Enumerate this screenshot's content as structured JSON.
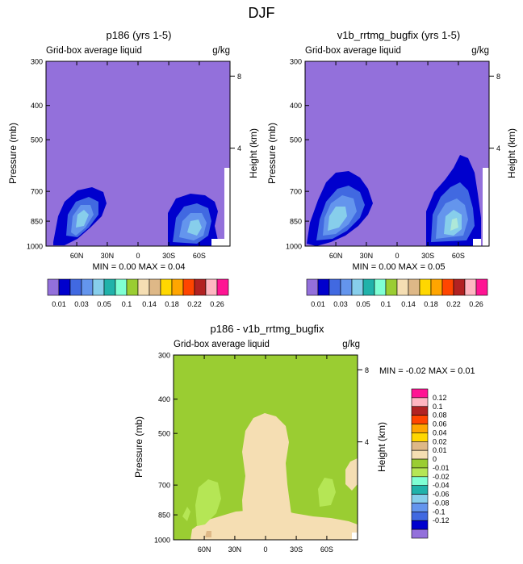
{
  "figure_title": "DJF",
  "chart_data": [
    {
      "type": "contour",
      "title": "p186 (yrs 1-5)",
      "subtitle_left": "Grid-box average liquid",
      "subtitle_right": "g/kg",
      "ylabel": "Pressure (mb)",
      "ylabel_right": "Height (km)",
      "x_ticks": [
        "60N",
        "30N",
        "0",
        "30S",
        "60S"
      ],
      "y_ticks": [
        "300",
        "400",
        "500",
        "700",
        "850",
        "1000"
      ],
      "y_right_ticks": [
        "8",
        "4"
      ],
      "stats": "MIN =   0.00  MAX =   0.04",
      "min": 0.0,
      "max": 0.04,
      "levels": [
        0.01,
        0.02,
        0.03,
        0.04,
        0.05,
        0.06,
        0.1,
        0.12,
        0.14,
        0.16,
        0.18,
        0.2,
        0.22,
        0.24,
        0.26
      ],
      "colorbar_labels": [
        "0.01",
        "0.03",
        "0.05",
        "0.1",
        "0.14",
        "0.18",
        "0.22",
        "0.26"
      ],
      "colors": [
        "#9370DB",
        "#0000CD",
        "#4169E1",
        "#6495ED",
        "#87CEEB",
        "#20B2AA",
        "#7FFFD4",
        "#9ACD32",
        "#F5DEB3",
        "#DEB887",
        "#FFD700",
        "#FFA500",
        "#FF4500",
        "#B22222",
        "#FFB6C1",
        "#FF1493"
      ]
    },
    {
      "type": "contour",
      "title": "v1b_rrtmg_bugfix (yrs 1-5)",
      "subtitle_left": "Grid-box average liquid",
      "subtitle_right": "g/kg",
      "ylabel": "Pressure (mb)",
      "ylabel_right": "Height (km)",
      "x_ticks": [
        "60N",
        "30N",
        "0",
        "30S",
        "60S"
      ],
      "y_ticks": [
        "300",
        "400",
        "500",
        "700",
        "850",
        "1000"
      ],
      "y_right_ticks": [
        "8",
        "4"
      ],
      "stats": "MIN =   0.00  MAX =   0.05",
      "min": 0.0,
      "max": 0.05,
      "colorbar_labels": [
        "0.01",
        "0.03",
        "0.05",
        "0.1",
        "0.14",
        "0.18",
        "0.22",
        "0.26"
      ]
    },
    {
      "type": "contour",
      "title": "p186 - v1b_rrtmg_bugfix",
      "subtitle_left": "Grid-box average liquid",
      "subtitle_right": "g/kg",
      "ylabel": "Pressure (mb)",
      "ylabel_right": "Height (km)",
      "x_ticks": [
        "60N",
        "30N",
        "0",
        "30S",
        "60S"
      ],
      "y_ticks": [
        "300",
        "400",
        "500",
        "700",
        "850",
        "1000"
      ],
      "y_right_ticks": [
        "8",
        "4"
      ],
      "stats": "MIN =  -0.02   MAX =   0.01",
      "min": -0.02,
      "max": 0.01,
      "colorbar_labels": [
        "0.12",
        "0.1",
        "0.08",
        "0.06",
        "0.04",
        "0.02",
        "0.01",
        "0",
        "-0.01",
        "-0.02",
        "-0.04",
        "-0.06",
        "-0.08",
        "-0.1",
        "-0.12"
      ],
      "colors": [
        "#FF1493",
        "#FFB6C1",
        "#B22222",
        "#FF4500",
        "#FFA500",
        "#FFD700",
        "#DEB887",
        "#F5DEB3",
        "#9ACD32",
        "#B5E655",
        "#7FFFD4",
        "#20B2AA",
        "#87CEEB",
        "#6495ED",
        "#4169E1",
        "#0000CD",
        "#9370DB"
      ]
    }
  ]
}
